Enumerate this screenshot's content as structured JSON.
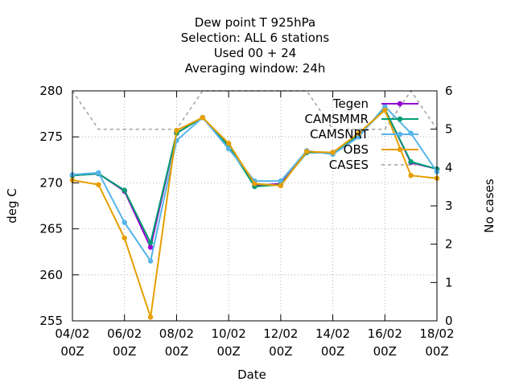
{
  "chart_data": {
    "type": "line",
    "title_lines": [
      "Dew point T 925hPa",
      "Selection: ALL      6 stations",
      "Used  00 + 24",
      "Averaging window: 24h"
    ],
    "xlabel": "Date",
    "ylabel": "deg C",
    "y2label": "No cases",
    "x_tick_labels": [
      [
        "04/02",
        "00Z"
      ],
      [
        "06/02",
        "00Z"
      ],
      [
        "08/02",
        "00Z"
      ],
      [
        "10/02",
        "00Z"
      ],
      [
        "12/02",
        "00Z"
      ],
      [
        "14/02",
        "00Z"
      ],
      [
        "16/02",
        "00Z"
      ],
      [
        "18/02",
        "00Z"
      ]
    ],
    "x_ticks": [
      4,
      6,
      8,
      10,
      12,
      14,
      16,
      18
    ],
    "xlim": [
      4,
      18
    ],
    "ylim": [
      255,
      280
    ],
    "y_ticks": [
      255,
      260,
      265,
      270,
      275,
      280
    ],
    "y2lim": [
      0,
      6
    ],
    "y2_ticks": [
      0,
      1,
      2,
      3,
      4,
      5,
      6
    ],
    "grid": true,
    "legend_position": "top-right",
    "series": [
      {
        "name": "Tegen",
        "color": "#9400d3",
        "marker": "circle",
        "axis": "y",
        "x": [
          4,
          5,
          6,
          7,
          8,
          9,
          10,
          11,
          12,
          13,
          14,
          15,
          16,
          17,
          18
        ],
        "y": [
          270.8,
          271.0,
          269.1,
          263.0,
          275.4,
          277.1,
          274.0,
          269.7,
          269.9,
          273.3,
          273.3,
          275.3,
          278.0,
          272.2,
          271.5
        ]
      },
      {
        "name": "CAMSMMR",
        "color": "#009e73",
        "marker": "circle",
        "axis": "y",
        "x": [
          4,
          5,
          6,
          7,
          8,
          9,
          10,
          11,
          12,
          13,
          14,
          15,
          16,
          17,
          18
        ],
        "y": [
          270.8,
          271.0,
          269.2,
          263.5,
          275.4,
          277.1,
          274.0,
          269.6,
          269.8,
          273.3,
          273.3,
          275.2,
          278.0,
          272.3,
          271.5
        ]
      },
      {
        "name": "CAMSNRT",
        "color": "#56b4e9",
        "marker": "circle",
        "axis": "y",
        "x": [
          4,
          5,
          6,
          7,
          8,
          9,
          10,
          11,
          12,
          13,
          14,
          15,
          16,
          17,
          18
        ],
        "y": [
          270.9,
          271.1,
          265.7,
          261.5,
          274.6,
          277.1,
          273.7,
          270.2,
          270.2,
          273.5,
          273.1,
          275.0,
          278.3,
          275.4,
          271.2
        ]
      },
      {
        "name": "OBS",
        "color": "#e69f00",
        "marker": "circle",
        "axis": "y",
        "x": [
          4,
          5,
          6,
          7,
          8,
          9,
          10,
          11,
          12,
          13,
          14,
          15,
          16,
          17,
          18
        ],
        "y": [
          270.3,
          269.8,
          264.0,
          255.4,
          275.7,
          277.1,
          274.3,
          269.9,
          269.7,
          273.4,
          273.3,
          275.4,
          277.9,
          270.8,
          270.5
        ]
      },
      {
        "name": "CASES",
        "color": "#a0a0a4",
        "dashed": true,
        "axis": "y2",
        "x": [
          4,
          5,
          6,
          7,
          8,
          9,
          10,
          11,
          12,
          13,
          14,
          15,
          16,
          17,
          18
        ],
        "y": [
          6,
          5,
          5,
          5,
          5,
          6,
          6,
          6,
          6,
          6,
          5,
          5,
          5,
          6,
          5
        ]
      }
    ]
  }
}
